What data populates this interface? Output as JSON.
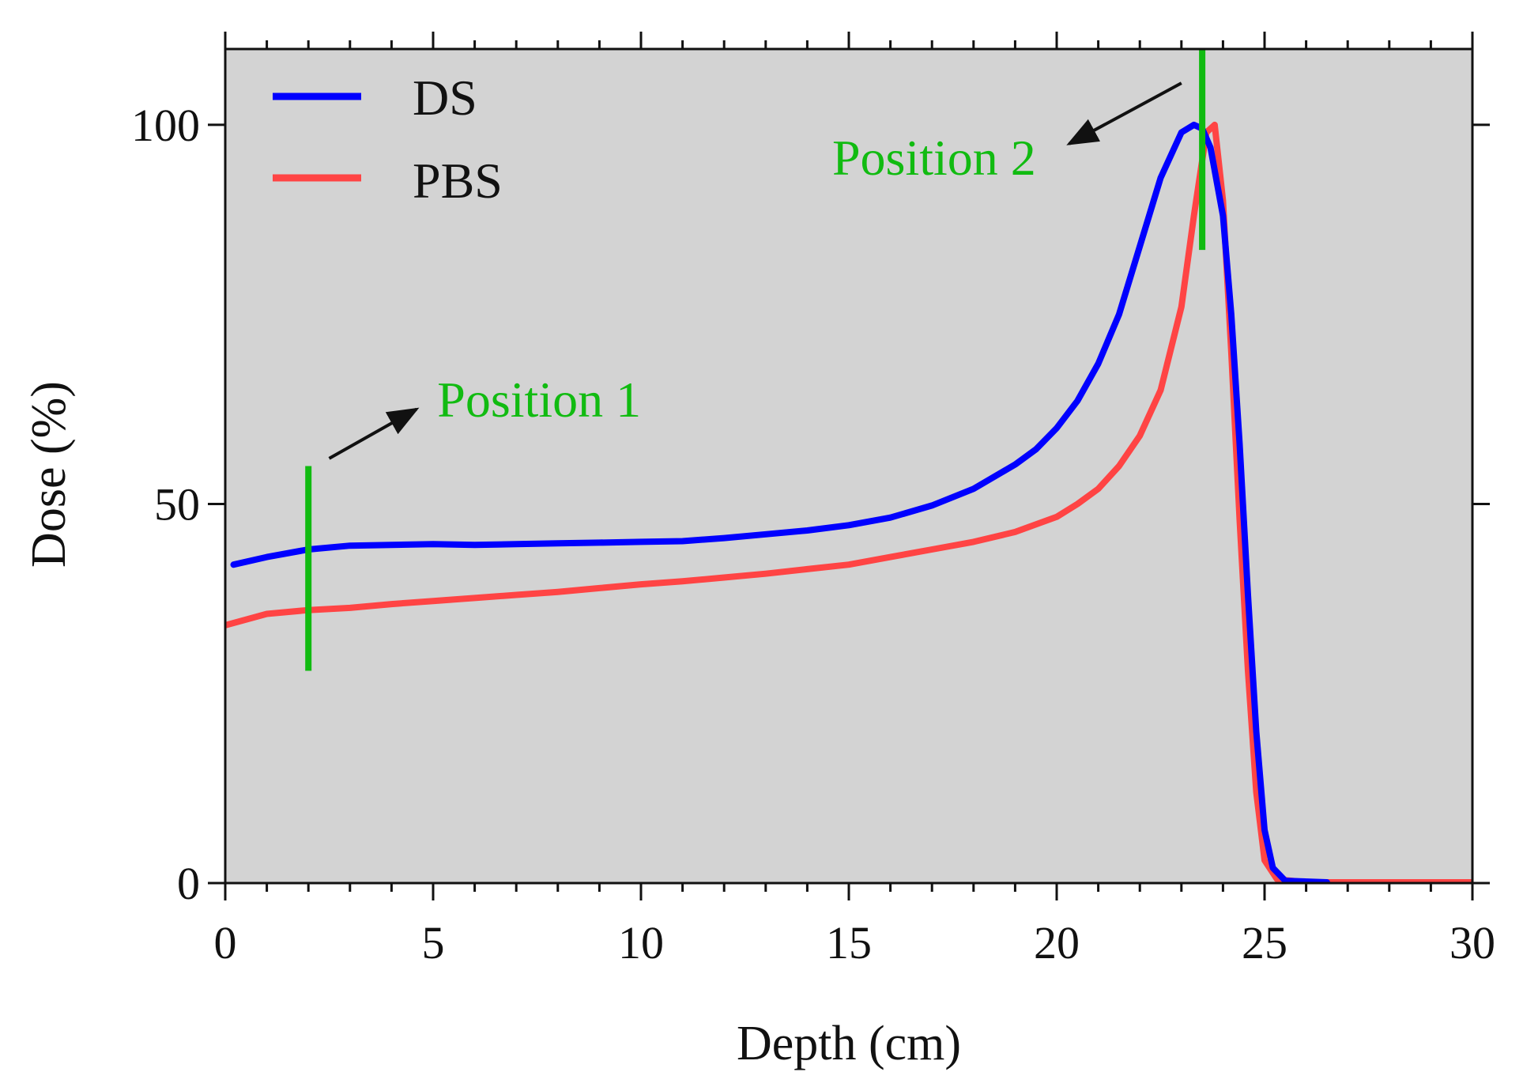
{
  "chart_data": {
    "type": "line",
    "title": "",
    "xlabel": "Depth (cm)",
    "ylabel": "Dose (%)",
    "xlim": [
      0,
      30
    ],
    "ylim": [
      0,
      110
    ],
    "xticks": [
      0,
      5,
      10,
      15,
      20,
      25,
      30
    ],
    "xtick_labels": [
      "0",
      "5",
      "10",
      "15",
      "20",
      "25",
      "30"
    ],
    "yticks": [
      0,
      50,
      100
    ],
    "ytick_labels": [
      "0",
      "50",
      "100"
    ],
    "grid": false,
    "plot_background": "#d3d3d3",
    "legend_position": "top-left",
    "series": [
      {
        "name": "DS",
        "color": "#0000ff",
        "x": [
          0.2,
          1,
          2,
          3,
          4,
          5,
          6,
          7,
          8,
          9,
          10,
          11,
          12,
          13,
          14,
          15,
          16,
          17,
          18,
          19,
          19.5,
          20,
          20.5,
          21,
          21.5,
          22,
          22.5,
          23,
          23.3,
          23.5,
          23.7,
          24,
          24.2,
          24.4,
          24.6,
          24.8,
          25,
          25.2,
          25.5,
          26.5
        ],
        "y": [
          42,
          43,
          44,
          44.5,
          44.6,
          44.7,
          44.6,
          44.7,
          44.8,
          44.9,
          45,
          45.1,
          45.5,
          46,
          46.5,
          47.2,
          48.2,
          49.8,
          52,
          55.2,
          57.2,
          60,
          63.6,
          68.5,
          75,
          84,
          93,
          99,
          100,
          99.5,
          97,
          88,
          75,
          58,
          38,
          20,
          7,
          2,
          0.3,
          0.1
        ]
      },
      {
        "name": "PBS",
        "color": "#ff4444",
        "x": [
          0,
          1,
          2,
          3,
          4,
          5,
          6,
          7,
          8,
          9,
          10,
          11,
          12,
          13,
          14,
          15,
          16,
          17,
          18,
          19,
          20,
          20.5,
          21,
          21.5,
          22,
          22.5,
          23,
          23.3,
          23.6,
          23.8,
          24,
          24.2,
          24.4,
          24.6,
          24.8,
          25,
          25.3,
          26,
          30
        ],
        "y": [
          34,
          35.5,
          36,
          36.3,
          36.8,
          37.2,
          37.6,
          38,
          38.4,
          38.9,
          39.4,
          39.8,
          40.3,
          40.8,
          41.4,
          42,
          43,
          44,
          45,
          46.3,
          48.3,
          50,
          52,
          55,
          59,
          65,
          76,
          88,
          99,
          100,
          90,
          70,
          48,
          28,
          12,
          3,
          0.5,
          0.1,
          0.1
        ]
      }
    ],
    "annotations": [
      {
        "label": "Position 1",
        "color": "#11bb11",
        "marker_x": 2,
        "marker_y_range": [
          28,
          55
        ],
        "arrow_from": [
          2.5,
          56
        ],
        "arrow_to": [
          4.6,
          62.5
        ]
      },
      {
        "label": "Position 2",
        "color": "#11bb11",
        "marker_x": 23.5,
        "marker_y_range": [
          83.5,
          110
        ],
        "arrow_from": [
          23,
          105.5
        ],
        "arrow_to": [
          20.3,
          97.5
        ]
      }
    ]
  }
}
